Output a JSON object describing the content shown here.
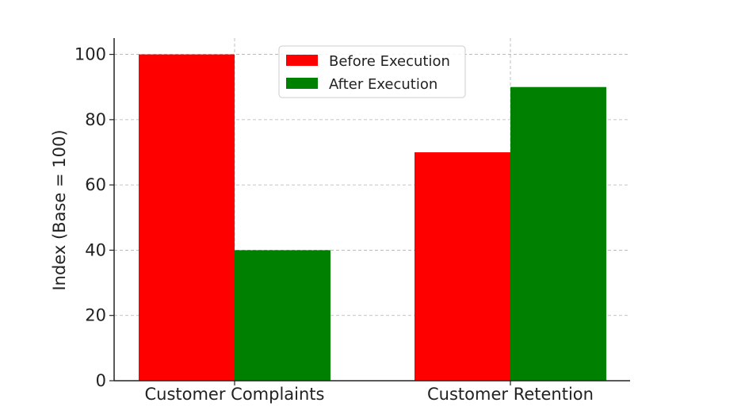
{
  "chart_data": {
    "type": "bar",
    "categories": [
      "Customer Complaints",
      "Customer Retention"
    ],
    "series": [
      {
        "name": "Before Execution",
        "values": [
          100,
          70
        ],
        "color": "#ff0000"
      },
      {
        "name": "After Execution",
        "values": [
          40,
          90
        ],
        "color": "#008000"
      }
    ],
    "ylabel": "Index (Base = 100)",
    "ylim": [
      0,
      105
    ],
    "yticks": [
      0,
      20,
      40,
      60,
      80,
      100
    ],
    "grid": true,
    "legend_position": "top-center"
  }
}
